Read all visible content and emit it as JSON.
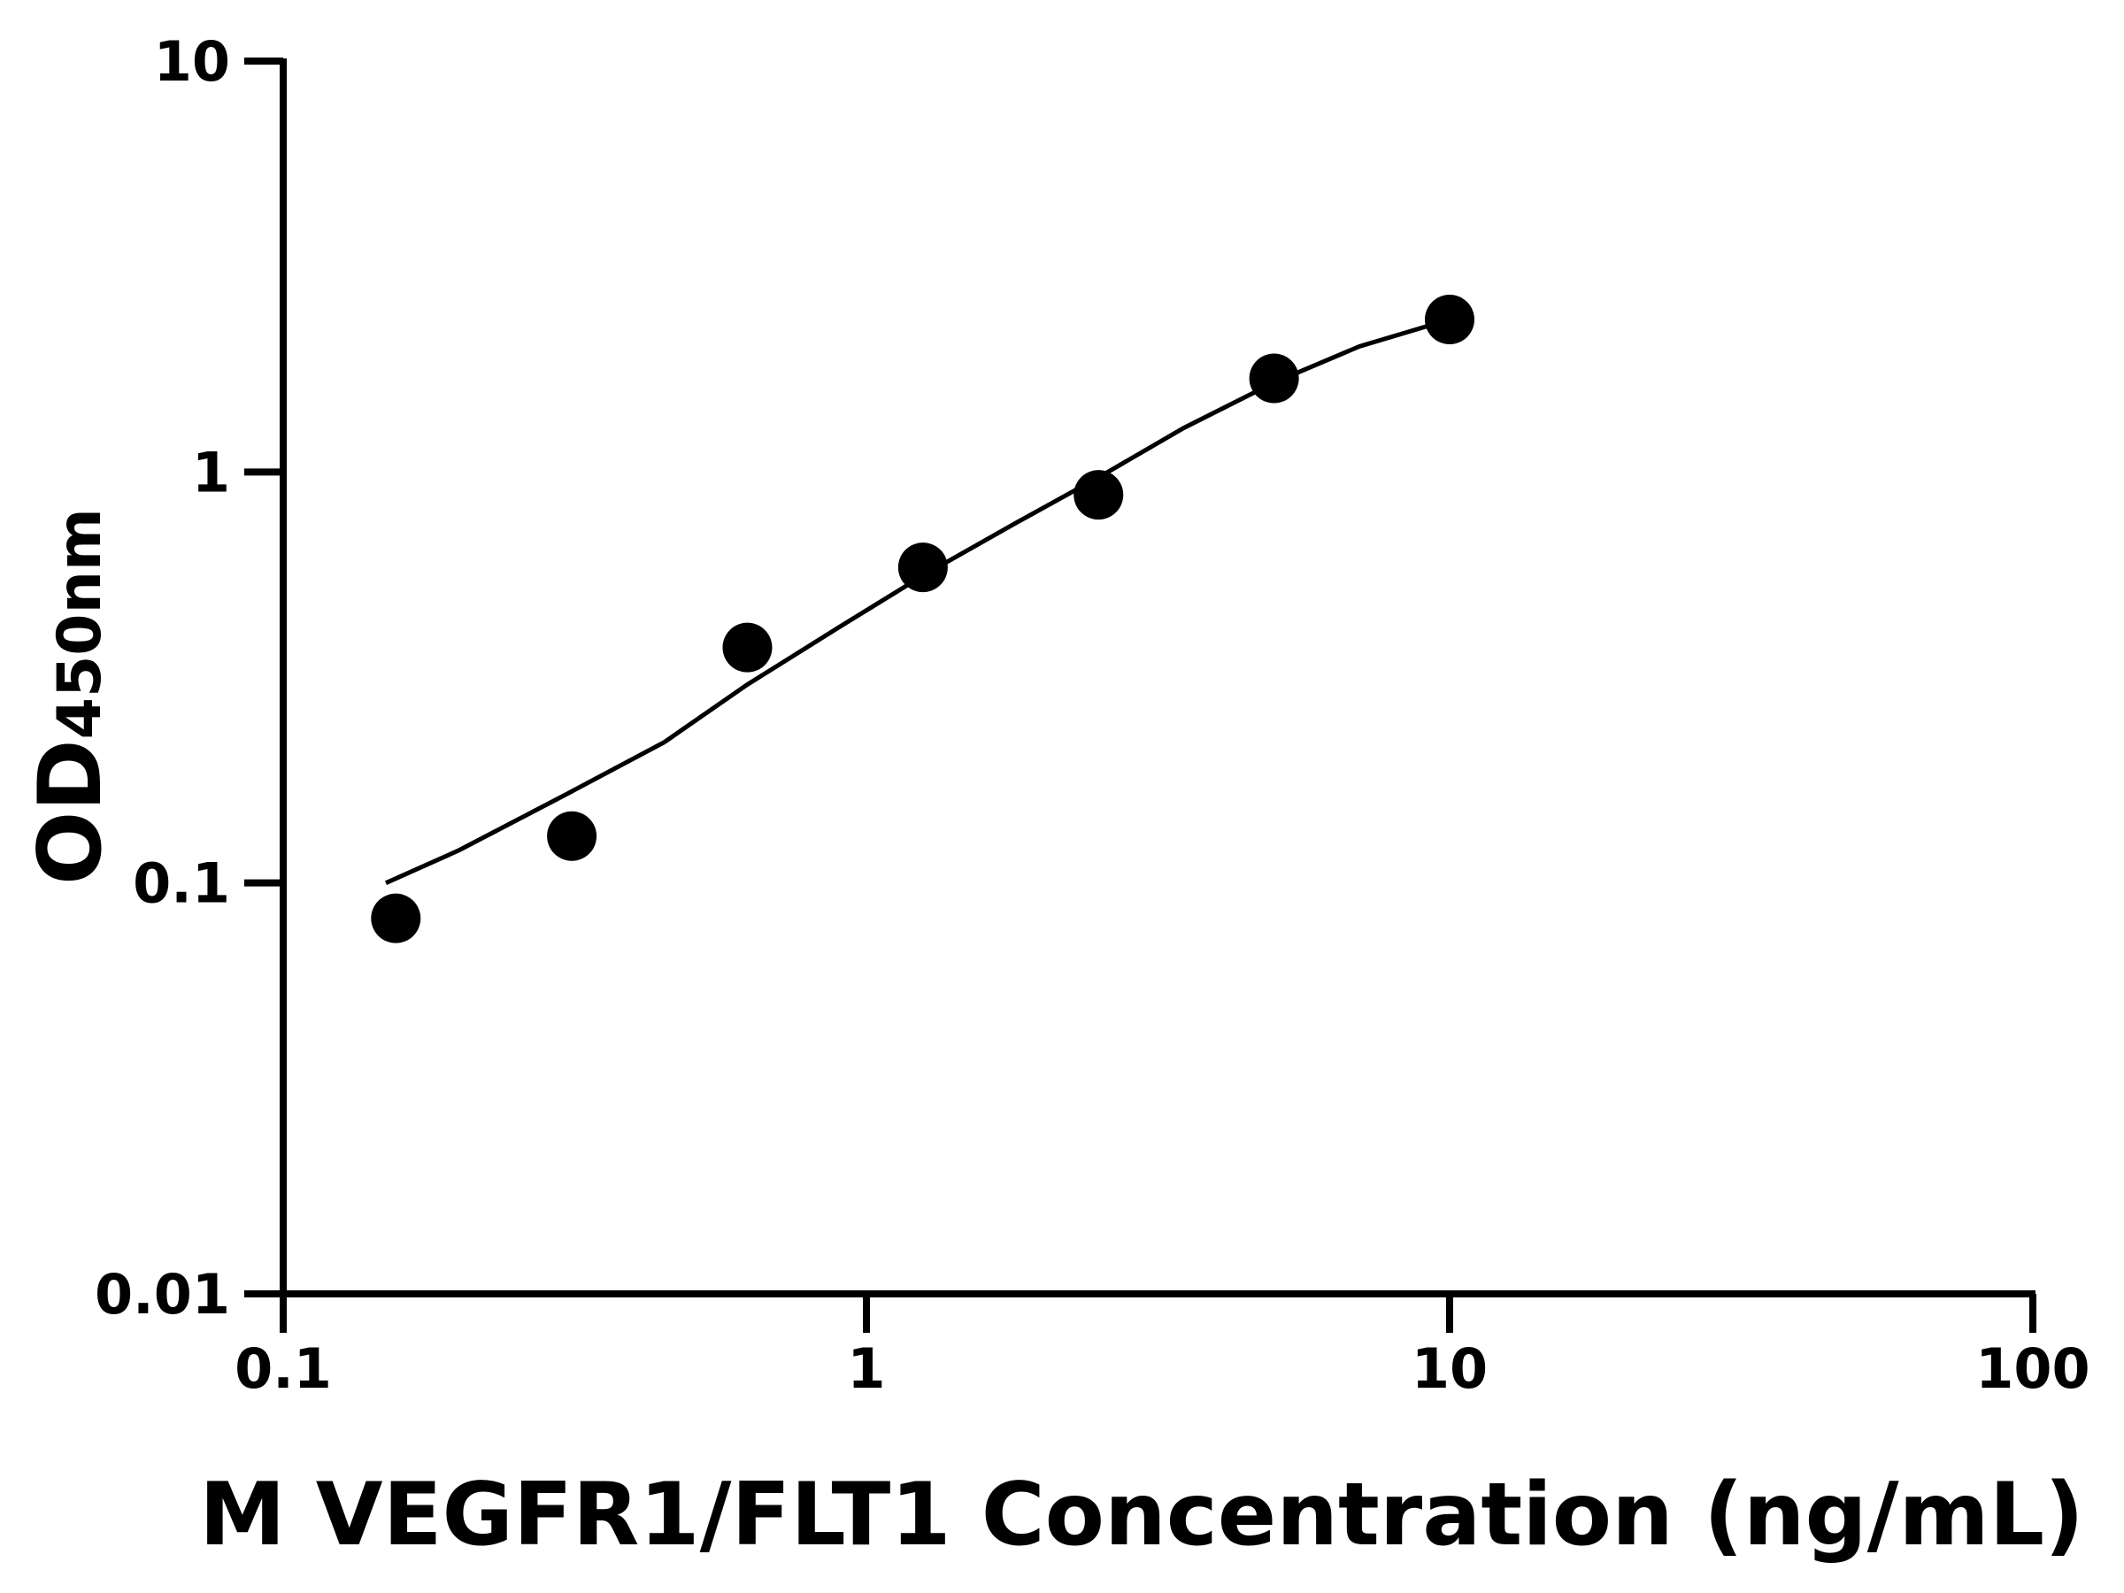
{
  "chart_data": {
    "type": "scatter",
    "title": "",
    "xlabel": "M VEGFR1/FLT1 Concentration (ng/mL)",
    "ylabel_main": "OD",
    "ylabel_sub": "450nm",
    "x_scale": "log",
    "y_scale": "log",
    "xlim": [
      0.1,
      100
    ],
    "ylim": [
      0.01,
      10
    ],
    "x_ticks": [
      "0.1",
      "1",
      "10",
      "100"
    ],
    "y_ticks": [
      "0.01",
      "0.1",
      "1",
      "10"
    ],
    "grid": false,
    "points": {
      "x": [
        0.156,
        0.3125,
        0.625,
        1.25,
        2.5,
        5,
        10
      ],
      "y": [
        0.082,
        0.13,
        0.374,
        0.586,
        0.88,
        1.69,
        2.35
      ]
    },
    "fit_curve": {
      "x": [
        0.15,
        0.2,
        0.3,
        0.45,
        0.625,
        0.9,
        1.25,
        1.8,
        2.5,
        3.5,
        5,
        7,
        10
      ],
      "y": [
        0.1,
        0.12,
        0.162,
        0.22,
        0.304,
        0.42,
        0.56,
        0.75,
        0.97,
        1.28,
        1.65,
        2.02,
        2.35
      ]
    },
    "color": "#000000"
  }
}
